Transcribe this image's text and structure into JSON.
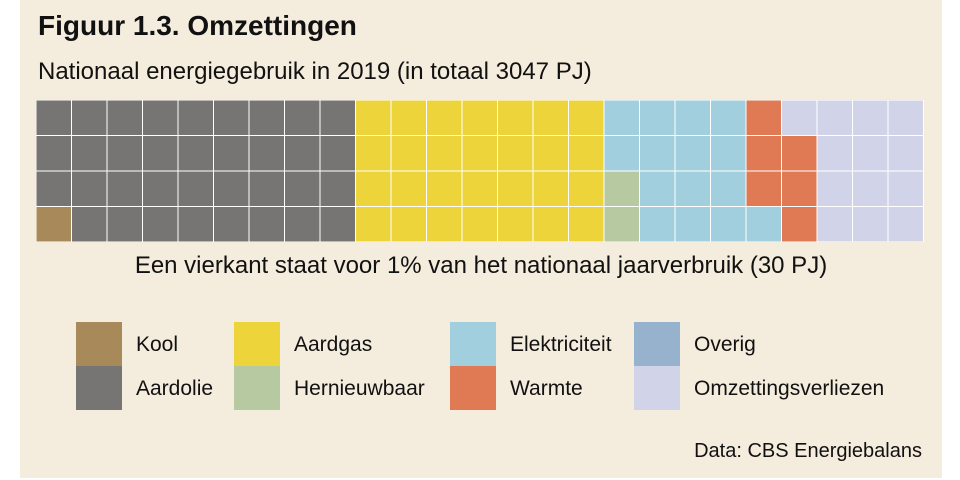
{
  "chart_data": {
    "type": "waffle",
    "title": "Figuur 1.3. Omzettingen",
    "subtitle": "Nationaal energiegebruik in 2019 (in totaal 3047 PJ)",
    "note": "Een vierkant staat voor 1% van het nationaal jaarverbruik (30 PJ)",
    "source": "Data: CBS Energiebalans",
    "series": [
      {
        "name": "Kool",
        "value": 1,
        "color": "#a8895a"
      },
      {
        "name": "Aardolie",
        "value": 35,
        "color": "#767573"
      },
      {
        "name": "Aardgas",
        "value": 28,
        "color": "#ecd43a"
      },
      {
        "name": "Hernieuwbaar",
        "value": 2,
        "color": "#b7c9a0"
      },
      {
        "name": "Elektriciteit",
        "value": 15,
        "color": "#a2cfdd"
      },
      {
        "name": "Warmte",
        "value": 6,
        "color": "#e07a55"
      },
      {
        "name": "Overig",
        "value": 0,
        "color": "#96b2cd"
      },
      {
        "name": "Omzettingsverliezen",
        "value": 13,
        "color": "#d1d4e8"
      }
    ],
    "legend_order": [
      "Kool",
      "Aardgas",
      "Elektriciteit",
      "Overig",
      "Aardolie",
      "Hernieuwbaar",
      "Warmte",
      "Omzettingsverliezen"
    ]
  }
}
